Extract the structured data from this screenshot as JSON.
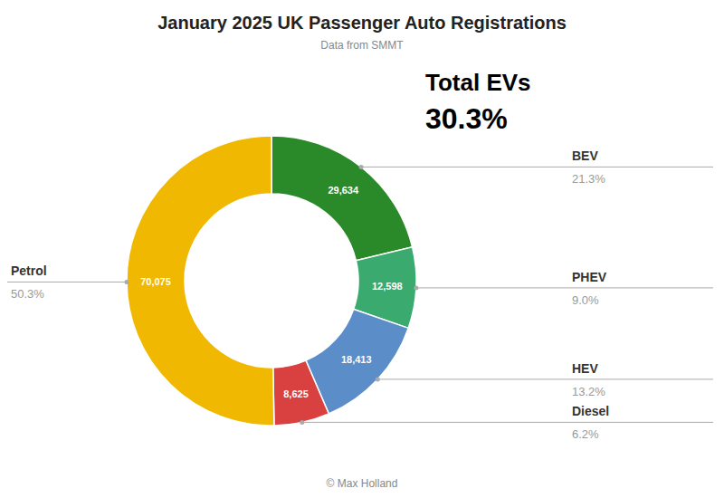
{
  "chart_data": {
    "type": "donut",
    "title": "January 2025 UK Passenger Auto Registrations",
    "subtitle": "Data from SMMT",
    "caption": "© Max Holland",
    "annotations": [
      "Total EVs",
      "30.3%"
    ],
    "categories": [
      "BEV",
      "PHEV",
      "HEV",
      "Diesel",
      "Petrol"
    ],
    "values": [
      29634,
      12598,
      18413,
      8625,
      70075
    ],
    "value_labels": [
      "29,634",
      "12,598",
      "18,413",
      "8,625",
      "70,075"
    ],
    "shares": [
      21.3,
      9.0,
      13.2,
      6.2,
      50.3
    ],
    "share_labels": [
      "21.3%",
      "9.0%",
      "13.2%",
      "6.2%",
      "50.3%"
    ],
    "colors": [
      "#2a8a2a",
      "#3aaa6e",
      "#5b8dc8",
      "#d94040",
      "#f0b800"
    ],
    "data_labels": true
  }
}
